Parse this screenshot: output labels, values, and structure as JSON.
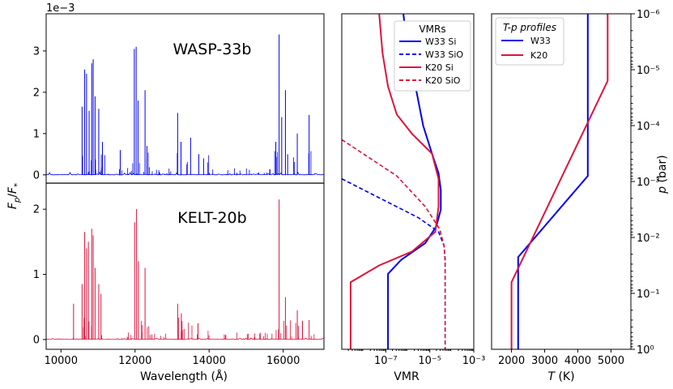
{
  "chart_data": [
    {
      "type": "line",
      "panel": "emission-spectrum-wasp33b",
      "title": "WASP-33b",
      "offset_label": "1e−3",
      "xlim": [
        9600,
        17100
      ],
      "ylim": [
        -0.2,
        3.9
      ],
      "yticks": [
        0,
        1,
        2,
        3
      ],
      "ytick_labels": [
        "0",
        "1",
        "2",
        "3"
      ],
      "color": "#0000ee",
      "ylabel": "F_p/F_*",
      "lines": [
        {
          "x": 10570,
          "y": 1.65
        },
        {
          "x": 10640,
          "y": 2.55
        },
        {
          "x": 10690,
          "y": 2.45
        },
        {
          "x": 10760,
          "y": 1.55
        },
        {
          "x": 10830,
          "y": 2.7
        },
        {
          "x": 10870,
          "y": 2.8
        },
        {
          "x": 10920,
          "y": 1.9
        },
        {
          "x": 11020,
          "y": 1.6
        },
        {
          "x": 11120,
          "y": 0.8
        },
        {
          "x": 11600,
          "y": 0.6
        },
        {
          "x": 11980,
          "y": 3.05
        },
        {
          "x": 12030,
          "y": 3.1
        },
        {
          "x": 12080,
          "y": 1.8
        },
        {
          "x": 12270,
          "y": 2.05
        },
        {
          "x": 12320,
          "y": 0.7
        },
        {
          "x": 13150,
          "y": 1.5
        },
        {
          "x": 13240,
          "y": 0.8
        },
        {
          "x": 13500,
          "y": 0.9
        },
        {
          "x": 13720,
          "y": 0.5
        },
        {
          "x": 13850,
          "y": 0.4
        },
        {
          "x": 15800,
          "y": 0.8
        },
        {
          "x": 15890,
          "y": 3.4
        },
        {
          "x": 15960,
          "y": 1.4
        },
        {
          "x": 16060,
          "y": 2.05
        },
        {
          "x": 16120,
          "y": 0.5
        },
        {
          "x": 16380,
          "y": 1.0
        },
        {
          "x": 16700,
          "y": 1.45
        }
      ]
    },
    {
      "type": "line",
      "panel": "emission-spectrum-kelt20b",
      "title": "KELT-20b",
      "xlim": [
        9600,
        17100
      ],
      "ylim": [
        -0.15,
        2.4
      ],
      "yticks": [
        0,
        1,
        2
      ],
      "ytick_labels": [
        "0",
        "1",
        "2"
      ],
      "xticks": [
        10000,
        12000,
        14000,
        16000
      ],
      "xtick_labels": [
        "10000",
        "12000",
        "14000",
        "16000"
      ],
      "xlabel": "Wavelength (Å)",
      "color": "#dc143c",
      "lines": [
        {
          "x": 10340,
          "y": 0.55
        },
        {
          "x": 10570,
          "y": 0.85
        },
        {
          "x": 10640,
          "y": 1.65
        },
        {
          "x": 10690,
          "y": 1.4
        },
        {
          "x": 10740,
          "y": 1.5
        },
        {
          "x": 10830,
          "y": 1.7
        },
        {
          "x": 10870,
          "y": 1.6
        },
        {
          "x": 10920,
          "y": 1.1
        },
        {
          "x": 11020,
          "y": 0.85
        },
        {
          "x": 11080,
          "y": 0.7
        },
        {
          "x": 11990,
          "y": 1.8
        },
        {
          "x": 12040,
          "y": 2.0
        },
        {
          "x": 12090,
          "y": 1.2
        },
        {
          "x": 12270,
          "y": 1.1
        },
        {
          "x": 13150,
          "y": 0.55
        },
        {
          "x": 13250,
          "y": 0.4
        },
        {
          "x": 13700,
          "y": 0.25
        },
        {
          "x": 15890,
          "y": 2.15
        },
        {
          "x": 16060,
          "y": 0.65
        },
        {
          "x": 16380,
          "y": 0.45
        },
        {
          "x": 16700,
          "y": 0.3
        }
      ]
    },
    {
      "type": "line",
      "panel": "vmr-profiles",
      "xlabel": "VMR",
      "xscale": "log",
      "xlim_exp": [
        -9,
        -3
      ],
      "xticks": [
        -7,
        -5,
        -3
      ],
      "xtick_labels": [
        "10⁻⁷",
        "10⁻⁵",
        "10⁻³"
      ],
      "yscale": "log",
      "ylim_exp": [
        0,
        -6
      ],
      "legend": {
        "title": "VMRs",
        "position": "top-right"
      },
      "series": [
        {
          "name": "W33 Si",
          "color": "#0000ee",
          "dash": "solid",
          "points": [
            [
              -6.2,
              -6.0
            ],
            [
              -6.0,
              -5.3
            ],
            [
              -5.6,
              -4.6
            ],
            [
              -5.3,
              -4.0
            ],
            [
              -4.9,
              -3.5
            ],
            [
              -4.6,
              -3.15
            ],
            [
              -4.5,
              -2.85
            ],
            [
              -4.5,
              -2.5
            ],
            [
              -4.7,
              -2.2
            ],
            [
              -5.2,
              -1.9
            ],
            [
              -6.3,
              -1.6
            ],
            [
              -6.9,
              -1.35
            ],
            [
              -6.9,
              0
            ]
          ]
        },
        {
          "name": "W33 SiO",
          "color": "#0000ee",
          "dash": "dashed",
          "points": [
            [
              -9.0,
              -3.05
            ],
            [
              -7.0,
              -2.65
            ],
            [
              -5.5,
              -2.35
            ],
            [
              -4.6,
              -2.1
            ],
            [
              -4.35,
              -1.85
            ],
            [
              -4.3,
              -1.6
            ],
            [
              -4.3,
              0
            ]
          ]
        },
        {
          "name": "K20 Si",
          "color": "#dc143c",
          "dash": "solid",
          "points": [
            [
              -7.3,
              -6.0
            ],
            [
              -7.15,
              -5.3
            ],
            [
              -6.9,
              -4.7
            ],
            [
              -6.5,
              -4.2
            ],
            [
              -5.8,
              -3.85
            ],
            [
              -4.9,
              -3.5
            ],
            [
              -4.6,
              -3.05
            ],
            [
              -4.6,
              -2.55
            ],
            [
              -4.75,
              -2.1
            ],
            [
              -5.8,
              -1.75
            ],
            [
              -7.3,
              -1.5
            ],
            [
              -8.6,
              -1.2
            ],
            [
              -8.6,
              0
            ]
          ]
        },
        {
          "name": "K20 SiO",
          "color": "#dc143c",
          "dash": "dashed",
          "points": [
            [
              -9.0,
              -3.75
            ],
            [
              -6.5,
              -3.1
            ],
            [
              -5.2,
              -2.55
            ],
            [
              -4.55,
              -2.15
            ],
            [
              -4.35,
              -1.85
            ],
            [
              -4.3,
              -1.55
            ],
            [
              -4.3,
              0
            ]
          ]
        }
      ]
    },
    {
      "type": "line",
      "panel": "tp-profiles",
      "xlabel": "T (K)",
      "xlim": [
        1400,
        5600
      ],
      "xticks": [
        2000,
        3000,
        4000,
        5000
      ],
      "xtick_labels": [
        "2000",
        "3000",
        "4000",
        "5000"
      ],
      "ylabel": "p (bar)",
      "ylim_exp": [
        0,
        -6
      ],
      "yticks": [
        0,
        -1,
        -2,
        -3,
        -4,
        -5,
        -6
      ],
      "ytick_labels": [
        "10⁰",
        "10⁻¹",
        "10⁻²",
        "10⁻³",
        "10⁻⁴",
        "10⁻⁵",
        "10⁻⁶"
      ],
      "legend": {
        "title": "T-p profiles",
        "position": "top-left"
      },
      "series": [
        {
          "name": "W33",
          "color": "#0000ee",
          "points": [
            [
              2200,
              0
            ],
            [
              2200,
              -1.65
            ],
            [
              4300,
              -3.1
            ],
            [
              4300,
              -6.0
            ]
          ]
        },
        {
          "name": "K20",
          "color": "#dc143c",
          "points": [
            [
              2000,
              0
            ],
            [
              2000,
              -1.2
            ],
            [
              4900,
              -4.8
            ],
            [
              4900,
              -6.0
            ]
          ]
        }
      ]
    }
  ]
}
